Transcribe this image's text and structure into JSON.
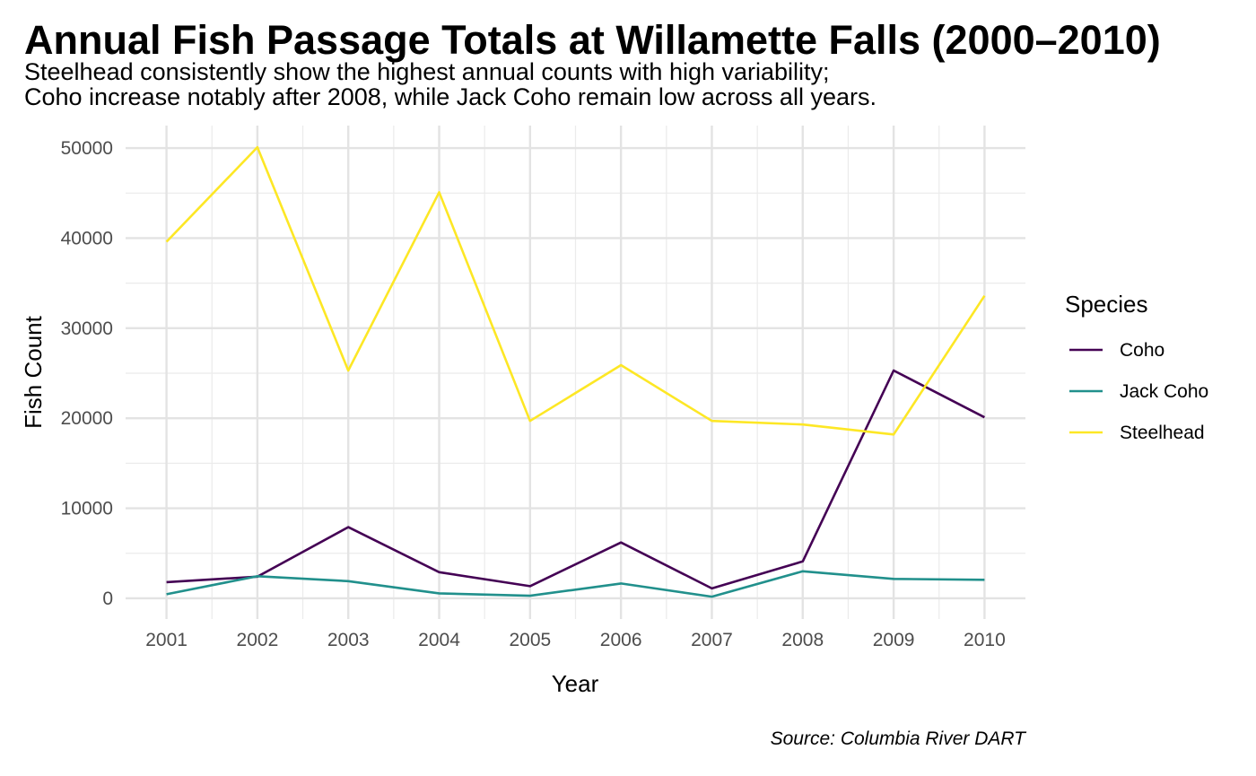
{
  "chart_data": {
    "type": "line",
    "title": "Annual Fish Passage Totals at Willamette Falls (2000–2010)",
    "subtitle": [
      "Steelhead consistently show the highest annual counts with high variability;",
      "Coho increase notably after 2008, while Jack Coho remain low across all years."
    ],
    "caption": "Source: Columbia River DART",
    "xlabel": "Year",
    "ylabel": "Fish Count",
    "x": [
      2001,
      2002,
      2003,
      2004,
      2005,
      2006,
      2007,
      2008,
      2009,
      2010
    ],
    "x_tick_labels": [
      "2001",
      "2002",
      "2003",
      "2004",
      "2005",
      "2006",
      "2007",
      "2008",
      "2009",
      "2010"
    ],
    "y_ticks": [
      0,
      10000,
      20000,
      30000,
      40000,
      50000
    ],
    "y_tick_labels": [
      "0",
      "10000",
      "20000",
      "30000",
      "40000",
      "50000"
    ],
    "xlim": [
      2000.55,
      2010.45
    ],
    "ylim": [
      -2300,
      52500
    ],
    "grid": true,
    "legend": {
      "title": "Species",
      "placement": "right"
    },
    "series": [
      {
        "name": "Coho",
        "color": "#440154",
        "values": [
          1800,
          2400,
          7900,
          2900,
          1350,
          6200,
          1100,
          4100,
          25300,
          20100
        ]
      },
      {
        "name": "Jack Coho",
        "color": "#21908C",
        "values": [
          450,
          2450,
          1900,
          550,
          280,
          1650,
          180,
          3000,
          2150,
          2050
        ]
      },
      {
        "name": "Steelhead",
        "color": "#FDE725",
        "values": [
          39600,
          50100,
          25300,
          45100,
          19700,
          25900,
          19700,
          19300,
          18200,
          33600
        ]
      }
    ]
  }
}
